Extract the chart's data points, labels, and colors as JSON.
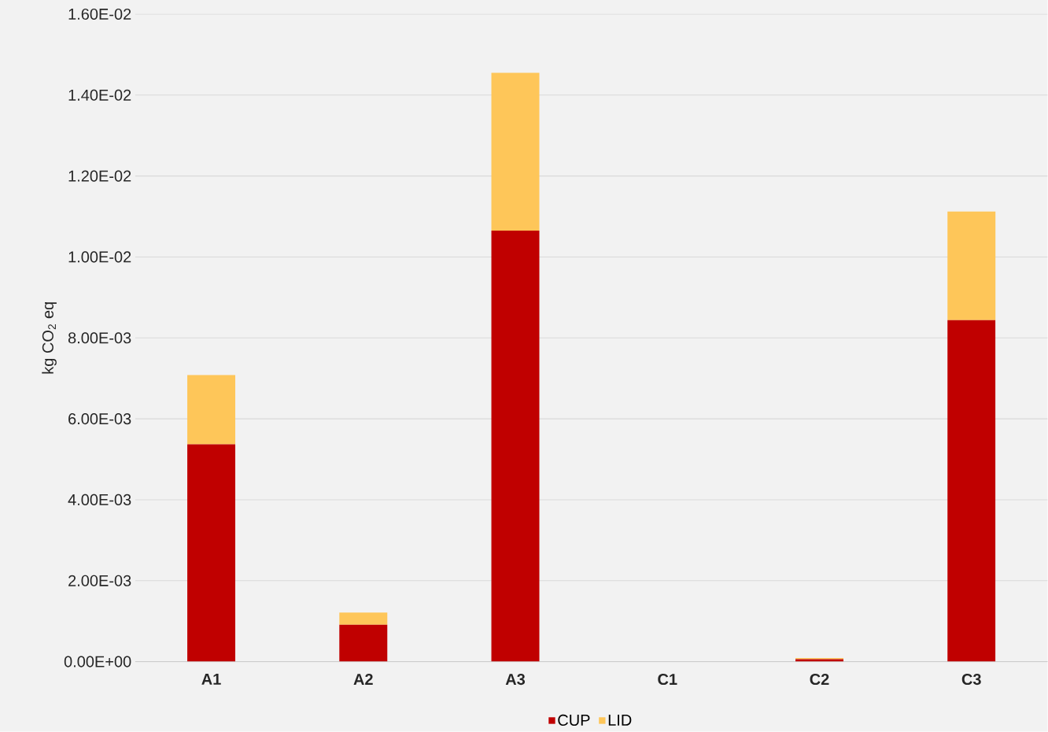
{
  "chart_data": {
    "type": "bar",
    "stacked": true,
    "ylabel": "kg CO$_{2}$ eq",
    "categories": [
      "A1",
      "A2",
      "A3",
      "C1",
      "C2",
      "C3"
    ],
    "series": [
      {
        "name": "CUP",
        "color": "#c00000",
        "values": [
          0.00537,
          0.00091,
          0.01065,
          0,
          6e-05,
          0.00844
        ]
      },
      {
        "name": "LID",
        "color": "#fec659",
        "values": [
          0.00171,
          0.0003,
          0.0039,
          0,
          3e-05,
          0.00268
        ]
      }
    ],
    "ylim": [
      0,
      0.016
    ],
    "yticks": [
      {
        "value": 0,
        "label": "0.00E+00"
      },
      {
        "value": 0.002,
        "label": "2.00E-03"
      },
      {
        "value": 0.004,
        "label": "4.00E-03"
      },
      {
        "value": 0.006,
        "label": "6.00E-03"
      },
      {
        "value": 0.008,
        "label": "8.00E-03"
      },
      {
        "value": 0.01,
        "label": "1.00E-02"
      },
      {
        "value": 0.012,
        "label": "1.20E-02"
      },
      {
        "value": 0.014,
        "label": "1.40E-02"
      },
      {
        "value": 0.016,
        "label": "1.60E-02"
      }
    ],
    "grid": "y",
    "legend": "bottom"
  }
}
